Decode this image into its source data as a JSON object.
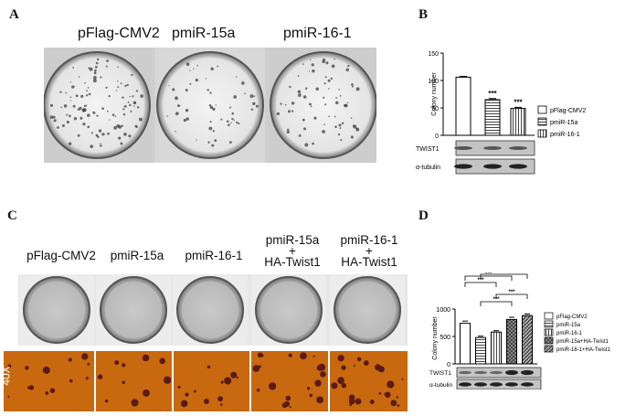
{
  "panels": {
    "a": {
      "letter": "A",
      "labels": [
        "pFlag-CMV2",
        "pmiR-15a",
        "pmiR-16-1"
      ]
    },
    "b": {
      "letter": "B"
    },
    "c": {
      "letter": "C",
      "labels": [
        [
          "pFlag-CMV2"
        ],
        [
          "pmiR-15a"
        ],
        [
          "pmiR-16-1"
        ],
        [
          "pmiR-15a",
          "+",
          "HA-Twist1"
        ],
        [
          "pmiR-16-1",
          "+",
          "HA-Twist1"
        ]
      ],
      "magnification": "40X"
    },
    "d": {
      "letter": "D"
    }
  },
  "colors": {
    "orange_bg": "#c8690f",
    "colony": "#5a1a16",
    "bar_gray": "#8c8c8c"
  },
  "chart_data": [
    {
      "type": "bar",
      "panel": "B",
      "categories": [
        "pFlag-CMV2",
        "pmiR-15a",
        "pmiR-16-1"
      ],
      "values": [
        106,
        65,
        49
      ],
      "errors": [
        1.5,
        2,
        2
      ],
      "significance": [
        "",
        "***",
        "***"
      ],
      "patterns": [
        "none",
        "hlines",
        "vlines"
      ],
      "ylabel": "Colony number",
      "yticks": [
        0,
        50,
        100,
        150
      ],
      "ylim": [
        0,
        150
      ],
      "legend": [
        "pFlag-CMV2",
        "pmiR-15a",
        "pmiR-16-1"
      ],
      "legend_position": "right",
      "blots": [
        "TWIST1",
        "α-tubulin"
      ]
    },
    {
      "type": "bar",
      "panel": "D",
      "categories": [
        "pFlag-CMV2",
        "pmiR-15a",
        "pmiR-16-1",
        "pmiR-15a+HA-Twist1",
        "pmiR-16-1+HA-Twist1"
      ],
      "values": [
        740,
        480,
        580,
        810,
        880
      ],
      "errors": [
        40,
        25,
        25,
        40,
        30
      ],
      "patterns": [
        "none",
        "hlines",
        "vlines",
        "crosshatch",
        "diagdark"
      ],
      "ylabel": "Colony number",
      "yticks": [
        0,
        500,
        1000
      ],
      "ylim": [
        0,
        1000
      ],
      "legend": [
        "pFlag-CMV2",
        "pmiR-15a",
        "pmiR-16-1",
        "pmiR-15a+HA-Twist1",
        "pmiR-16-1+HA-Twist1"
      ],
      "legend_position": "right",
      "brackets": [
        {
          "from": 0,
          "to": 3,
          "label": "***"
        },
        {
          "from": 0,
          "to": 2,
          "label": "***"
        },
        {
          "from": 1,
          "to": 4,
          "label": "***"
        },
        {
          "from": 2,
          "to": 4,
          "label": "***"
        },
        {
          "from": 1,
          "to": 3,
          "label": "***"
        }
      ],
      "blots": [
        "TWIST1",
        "α-tubulin"
      ]
    }
  ]
}
